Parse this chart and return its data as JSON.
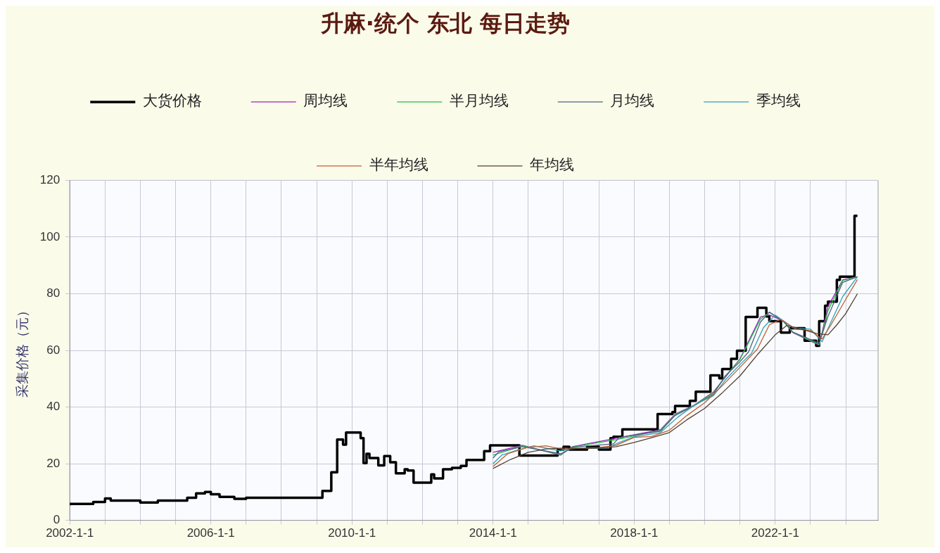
{
  "chart_data": {
    "type": "line",
    "title": "升麻·统个 东北 每日走势",
    "ylabel": "采集价格（元）",
    "xlim": [
      "2002-01",
      "2024-12"
    ],
    "xticks": [
      {
        "value": "2002-01",
        "label": "2002-1-1"
      },
      {
        "value": "2003-01",
        "label": null
      },
      {
        "value": "2004-01",
        "label": null
      },
      {
        "value": "2005-01",
        "label": null
      },
      {
        "value": "2006-01",
        "label": "2006-1-1"
      },
      {
        "value": "2007-01",
        "label": null
      },
      {
        "value": "2008-01",
        "label": null
      },
      {
        "value": "2009-01",
        "label": null
      },
      {
        "value": "2010-01",
        "label": "2010-1-1"
      },
      {
        "value": "2011-01",
        "label": null
      },
      {
        "value": "2012-01",
        "label": null
      },
      {
        "value": "2013-01",
        "label": null
      },
      {
        "value": "2014-01",
        "label": "2014-1-1"
      },
      {
        "value": "2015-01",
        "label": null
      },
      {
        "value": "2016-01",
        "label": null
      },
      {
        "value": "2017-01",
        "label": null
      },
      {
        "value": "2018-01",
        "label": "2018-1-1"
      },
      {
        "value": "2019-01",
        "label": null
      },
      {
        "value": "2020-01",
        "label": null
      },
      {
        "value": "2021-01",
        "label": null
      },
      {
        "value": "2022-01",
        "label": "2022-1-1"
      },
      {
        "value": "2023-01",
        "label": null
      },
      {
        "value": "2024-01",
        "label": null
      }
    ],
    "ylim": [
      0,
      120
    ],
    "yticks": [
      0,
      20,
      40,
      60,
      80,
      100,
      120
    ],
    "grid": true,
    "legend": "top",
    "series": [
      {
        "name": "大货价格",
        "type": "step",
        "color": "#000000",
        "x": [
          "2002-01",
          "2002-09",
          "2003-01",
          "2003-03",
          "2004-01",
          "2004-07",
          "2005-05",
          "2005-08",
          "2005-11",
          "2006-01",
          "2006-04",
          "2006-09",
          "2007-01",
          "2009-03",
          "2009-06",
          "2009-08",
          "2009-10",
          "2009-11",
          "2010-04",
          "2010-05",
          "2010-06",
          "2010-07",
          "2010-10",
          "2010-12",
          "2011-02",
          "2011-04",
          "2011-07",
          "2011-08",
          "2011-10",
          "2012-04",
          "2012-05",
          "2012-08",
          "2012-11",
          "2013-02",
          "2013-04",
          "2013-10",
          "2013-12",
          "2014-10",
          "2015-11",
          "2016-01",
          "2016-03",
          "2016-09",
          "2017-01",
          "2017-05",
          "2017-06",
          "2017-09",
          "2018-09",
          "2019-02",
          "2019-03",
          "2019-08",
          "2019-10",
          "2020-03",
          "2020-06",
          "2020-07",
          "2020-10",
          "2020-12",
          "2021-03",
          "2021-07",
          "2021-10",
          "2021-11",
          "2022-03",
          "2022-06",
          "2022-11",
          "2023-03",
          "2023-04",
          "2023-06",
          "2023-07",
          "2023-10",
          "2023-11",
          "2024-04",
          "2024-05"
        ],
        "values": [
          5.3,
          5.8,
          6.5,
          7.7,
          7.0,
          6.3,
          7.0,
          8.0,
          9.5,
          10.0,
          9.2,
          8.3,
          7.6,
          8.0,
          10.4,
          17.0,
          28.5,
          26.7,
          31.0,
          29.0,
          20.2,
          23.5,
          22.0,
          19.4,
          22.7,
          20.5,
          16.6,
          18.0,
          17.6,
          13.3,
          16.2,
          14.8,
          18.0,
          18.5,
          19.2,
          21.3,
          24.4,
          26.5,
          22.9,
          24.9,
          26.0,
          25.0,
          26.0,
          25.0,
          29.0,
          29.5,
          32.1,
          37.5,
          38.2,
          40.4,
          42.2,
          45.4,
          51.2,
          50.1,
          53.4,
          57.0,
          59.9,
          71.8,
          75.0,
          72.0,
          70.3,
          66.3,
          67.8,
          63.4,
          61.6,
          70.3,
          75.8,
          77.2,
          84.9,
          86.0,
          107.5
        ]
      },
      {
        "name": "周均线",
        "type": "line",
        "color": "#a020c0",
        "x": [
          "2014-01",
          "2014-11",
          "2015-12",
          "2016-04",
          "2017-07",
          "2018-10",
          "2019-03",
          "2019-09",
          "2020-04",
          "2020-08",
          "2021-01",
          "2021-08",
          "2021-11",
          "2022-04",
          "2022-07",
          "2023-04",
          "2023-07",
          "2023-12",
          "2024-05"
        ],
        "values": [
          24,
          26.5,
          23,
          26,
          29,
          32,
          37.5,
          40.4,
          45.3,
          50.5,
          57,
          71.8,
          72.5,
          70.3,
          66.3,
          61.8,
          75.5,
          84.9,
          86
        ]
      },
      {
        "name": "半月均线",
        "type": "line",
        "color": "#20c040",
        "x": [
          "2014-01",
          "2014-11",
          "2015-12",
          "2016-04",
          "2017-07",
          "2018-10",
          "2019-03",
          "2019-09",
          "2020-04",
          "2020-08",
          "2021-01",
          "2021-08",
          "2021-11",
          "2022-04",
          "2022-07",
          "2023-04",
          "2023-07",
          "2023-12",
          "2024-05"
        ],
        "values": [
          23,
          26.3,
          23.2,
          25.9,
          28.5,
          31.8,
          37.3,
          40.3,
          45,
          50.8,
          56.8,
          71,
          73.5,
          70.2,
          66.4,
          62,
          74,
          84.7,
          86
        ]
      },
      {
        "name": "月均线",
        "type": "line",
        "color": "#506080",
        "x": [
          "2014-01",
          "2014-03",
          "2014-11",
          "2015-12",
          "2016-02",
          "2016-04",
          "2017-06",
          "2017-08",
          "2018-10",
          "2019-03",
          "2019-09",
          "2020-04",
          "2020-08",
          "2021-01",
          "2021-04",
          "2021-08",
          "2021-11",
          "2022-04",
          "2022-07",
          "2023-04",
          "2023-07",
          "2023-12",
          "2024-05"
        ],
        "values": [
          22,
          24.2,
          26,
          23.5,
          24.5,
          25.8,
          27,
          29.3,
          31.5,
          37,
          40.2,
          44.5,
          51,
          56,
          59.5,
          70,
          73.5,
          70,
          66.5,
          62.5,
          72,
          84,
          86
        ]
      },
      {
        "name": "季均线",
        "type": "line",
        "color": "#30a0b8",
        "x": [
          "2014-01",
          "2014-04",
          "2014-10",
          "2015-03",
          "2015-12",
          "2016-04",
          "2016-10",
          "2017-04",
          "2017-08",
          "2018-01",
          "2018-10",
          "2019-04",
          "2019-10",
          "2020-04",
          "2020-08",
          "2021-01",
          "2021-05",
          "2021-09",
          "2022-01",
          "2022-07",
          "2023-01",
          "2023-05",
          "2023-08",
          "2023-12",
          "2024-05"
        ],
        "values": [
          20,
          23,
          25,
          26.3,
          24.5,
          25.5,
          25.4,
          25.6,
          27.5,
          29.5,
          31,
          36.5,
          41,
          44,
          49.5,
          55,
          59,
          68,
          72.5,
          68,
          67.5,
          63,
          70,
          79,
          86
        ]
      },
      {
        "name": "半年均线",
        "type": "line",
        "color": "#c06030",
        "x": [
          "2014-01",
          "2014-06",
          "2015-01",
          "2015-07",
          "2016-01",
          "2016-07",
          "2017-01",
          "2017-07",
          "2018-01",
          "2018-07",
          "2019-01",
          "2019-07",
          "2020-01",
          "2020-07",
          "2021-01",
          "2021-07",
          "2021-11",
          "2022-03",
          "2022-08",
          "2023-01",
          "2023-05",
          "2023-08",
          "2024-01",
          "2024-05"
        ],
        "values": [
          19,
          23.5,
          25.8,
          26.3,
          25,
          25.5,
          25.7,
          26.5,
          29.3,
          29.6,
          31.8,
          37,
          41.5,
          47.5,
          54,
          60.5,
          69,
          71,
          67.5,
          67,
          64,
          69,
          78,
          85
        ]
      },
      {
        "name": "年均线",
        "type": "line",
        "color": "#504030",
        "x": [
          "2014-01",
          "2014-07",
          "2015-01",
          "2015-07",
          "2016-01",
          "2016-07",
          "2017-01",
          "2017-07",
          "2018-01",
          "2018-07",
          "2019-01",
          "2019-07",
          "2020-01",
          "2020-07",
          "2021-01",
          "2021-07",
          "2022-01",
          "2022-05",
          "2022-10",
          "2023-03",
          "2023-07",
          "2023-10",
          "2024-01",
          "2024-05"
        ],
        "values": [
          18.3,
          21.5,
          24,
          25.2,
          25.5,
          25.3,
          25.5,
          26,
          27.5,
          29.2,
          31,
          35.5,
          39.5,
          45,
          51,
          58.5,
          65.5,
          68.8,
          67.5,
          66,
          65.5,
          69,
          73,
          80
        ]
      }
    ]
  }
}
